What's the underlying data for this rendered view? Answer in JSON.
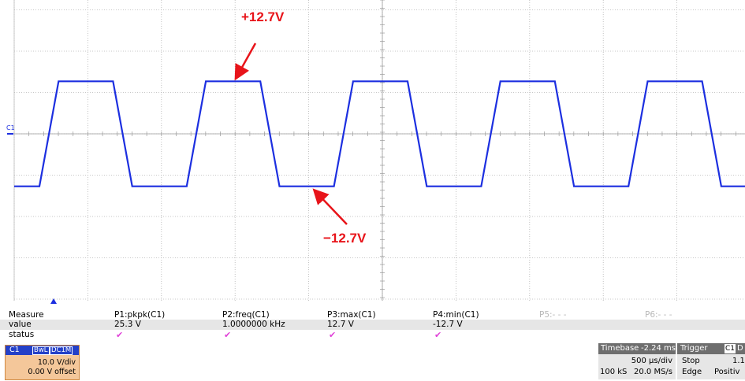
{
  "scope": {
    "channel_label": "C1",
    "trace_color": "#1c2fe0",
    "grid_color": "#b5b5b5",
    "volts_per_div": 10.0,
    "time_per_div_us": 500,
    "signal": {
      "max_v": 12.7,
      "min_v": -12.7,
      "period_us": 1000,
      "rise_time_us": 130
    }
  },
  "annotations": {
    "top_label": "+12.7V",
    "bottom_label": "−12.7V",
    "color": "#e8141a"
  },
  "measure": {
    "row_labels": {
      "header": "Measure",
      "value": "value",
      "status": "status"
    },
    "params": [
      {
        "name": "P1:pkpk(C1)",
        "value": "25.3 V",
        "status": "✔"
      },
      {
        "name": "P2:freq(C1)",
        "value": "1.0000000 kHz",
        "status": "✔"
      },
      {
        "name": "P3:max(C1)",
        "value": "12.7 V",
        "status": "✔"
      },
      {
        "name": "P4:min(C1)",
        "value": "-12.7 V",
        "status": "✔"
      },
      {
        "name": "P5:- - -",
        "value": "",
        "status": ""
      },
      {
        "name": "P6:- - -",
        "value": "",
        "status": ""
      }
    ]
  },
  "channel_box": {
    "name": "C1",
    "tag1": "BwL",
    "tag2": "DC1M",
    "vdiv": "10.0 V/div",
    "offset": "0.00 V offset"
  },
  "timebase": {
    "label": "Timebase",
    "delay": "-2.24 ms",
    "tdiv": "500 µs/div",
    "samples": "100 kS",
    "rate": "20.0 MS/s"
  },
  "trigger": {
    "label": "Trigger",
    "chan": "C1",
    "chan_suffix": "D",
    "mode": "Stop",
    "level": "1.1",
    "type": "Edge",
    "slope": "Positiv"
  }
}
